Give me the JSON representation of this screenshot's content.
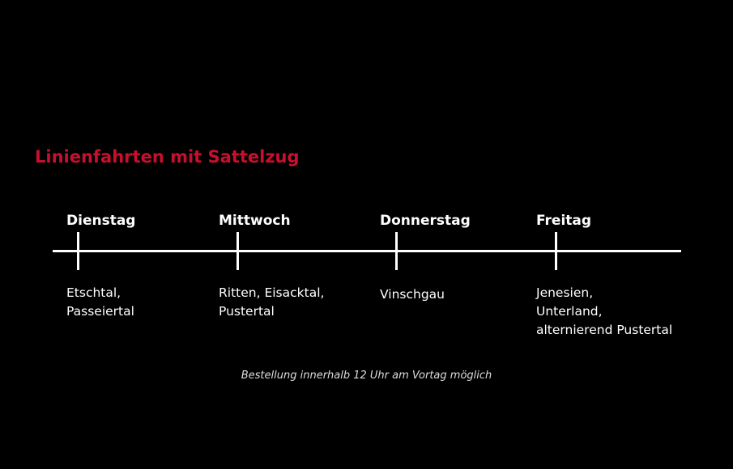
{
  "title": "Linienfahrten mit Sattelzug",
  "colors": {
    "background": "#000000",
    "title": "#c8102e",
    "text": "#ffffff"
  },
  "days": [
    {
      "name": "Dienstag",
      "regions": [
        "Etschtal,",
        "Passeiertal"
      ]
    },
    {
      "name": "Mittwoch",
      "regions": [
        "Ritten, Eisacktal,",
        "Pustertal"
      ]
    },
    {
      "name": "Donnerstag",
      "regions": [
        "Vinschgau"
      ]
    },
    {
      "name": "Freitag",
      "regions": [
        "Jenesien,",
        "Unterland,",
        "alternierend Pustertal"
      ]
    }
  ],
  "footnote": "Bestellung innerhalb 12 Uhr am Vortag möglich"
}
